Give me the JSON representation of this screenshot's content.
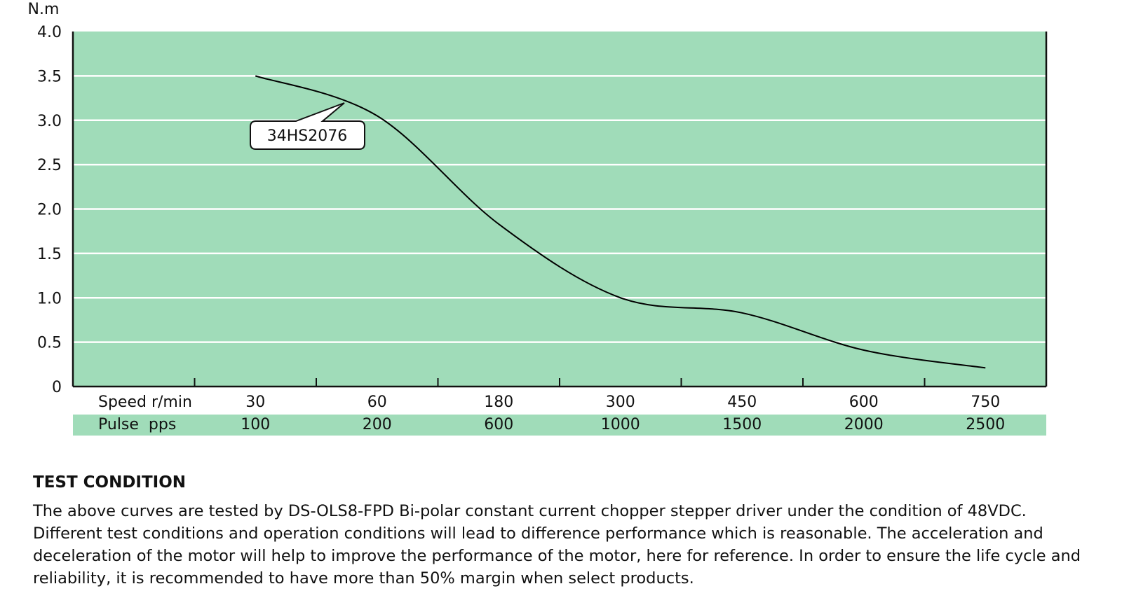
{
  "chart_data": {
    "type": "line",
    "y_label": "N.m",
    "row_labels": [
      "Speed r/min",
      "Pulse  pps"
    ],
    "categories": [
      "30",
      "60",
      "180",
      "300",
      "450",
      "600",
      "750"
    ],
    "pulse_categories": [
      "100",
      "200",
      "600",
      "1000",
      "1500",
      "2000",
      "2500"
    ],
    "series": [
      {
        "name": "34HS2076",
        "color": "#000000",
        "values": [
          3.5,
          3.05,
          1.83,
          1.0,
          0.83,
          0.41,
          0.21
        ]
      }
    ],
    "ylim": [
      0,
      4
    ],
    "yticks": [
      0,
      0.5,
      {
        "value": 1,
        "label": "1.0"
      },
      1.5,
      {
        "value": 2,
        "label": "2.0"
      },
      2.5,
      {
        "value": 3,
        "label": "3.0"
      },
      3.5,
      {
        "value": 4,
        "label": "4.0"
      }
    ],
    "grid": true,
    "plot_color": "#a0dcb9"
  },
  "test_condition": {
    "title": "TEST CONDITION",
    "text": "The above curves are tested by DS-OLS8-FPD Bi-polar constant current chopper stepper driver under the condition of 48VDC. Different test conditions and operation conditions will lead to difference performance which is reasonable. The acceleration and deceleration of the motor will help to improve the performance of the motor, here for reference. In order to ensure the life cycle and reliability, it is recommended to have more than 50% margin when select products."
  }
}
